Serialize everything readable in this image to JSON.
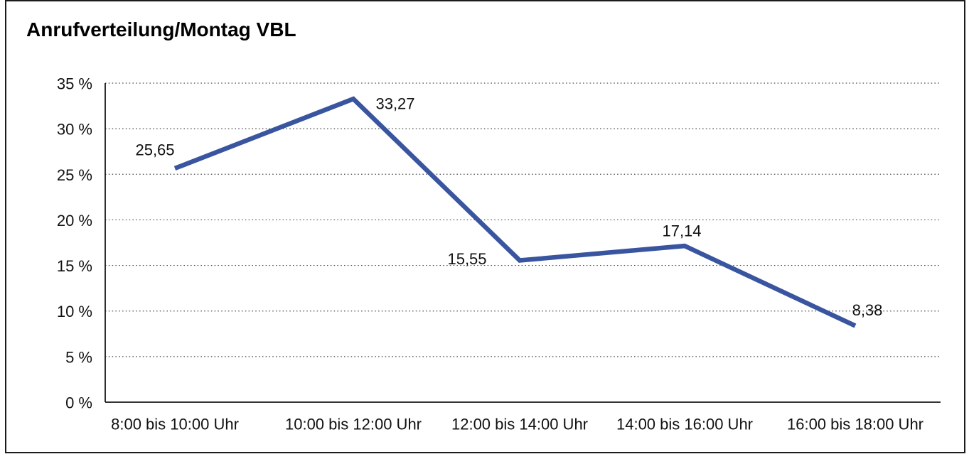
{
  "chart_data": {
    "type": "line",
    "title": "Anrufverteilung/Montag VBL",
    "categories": [
      "8:00 bis 10:00 Uhr",
      "10:00 bis 12:00 Uhr",
      "12:00 bis 14:00 Uhr",
      "14:00 bis 16:00 Uhr",
      "16:00 bis 18:00 Uhr"
    ],
    "values": [
      25.65,
      33.27,
      15.55,
      17.14,
      8.38
    ],
    "point_labels": [
      "25,65",
      "33,27",
      "15,55",
      "17,14",
      "8,38"
    ],
    "xlabel": "",
    "ylabel": "",
    "ylim": [
      0,
      35
    ],
    "y_step": 5,
    "y_ticks": [
      {
        "value": 0,
        "label": "0 %"
      },
      {
        "value": 5,
        "label": "5 %"
      },
      {
        "value": 10,
        "label": "10 %"
      },
      {
        "value": 15,
        "label": "15 %"
      },
      {
        "value": 20,
        "label": "20 %"
      },
      {
        "value": 25,
        "label": "25 %"
      },
      {
        "value": 30,
        "label": "30 %"
      },
      {
        "value": 35,
        "label": "35 %"
      }
    ],
    "grid": "dotted-horizontal",
    "legend": "none",
    "line_color": "#3A55A0",
    "text_color": "#111111"
  }
}
